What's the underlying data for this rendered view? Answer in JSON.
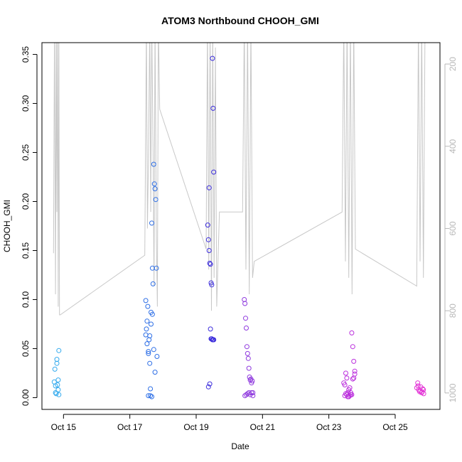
{
  "chart_data": {
    "type": "scatter",
    "title": "ATOM3 Northbound CHOOH_GMI",
    "xlabel": "Date",
    "ylabel": "CHOOH_GMI",
    "x_unit": "day of October",
    "xlim": [
      14.35,
      26.35
    ],
    "ylim": [
      -0.012,
      0.362
    ],
    "x_ticks": [
      {
        "value": 15,
        "label": "Oct 15"
      },
      {
        "value": 17,
        "label": "Oct 17"
      },
      {
        "value": 19,
        "label": "Oct 19"
      },
      {
        "value": 21,
        "label": "Oct 21"
      },
      {
        "value": 23,
        "label": "Oct 23"
      },
      {
        "value": 25,
        "label": "Oct 25"
      }
    ],
    "y_ticks": [
      {
        "value": 0.0,
        "label": "0.00"
      },
      {
        "value": 0.05,
        "label": "0.05"
      },
      {
        "value": 0.1,
        "label": "0.10"
      },
      {
        "value": 0.15,
        "label": "0.15"
      },
      {
        "value": 0.2,
        "label": "0.20"
      },
      {
        "value": 0.25,
        "label": "0.25"
      },
      {
        "value": 0.3,
        "label": "0.30"
      },
      {
        "value": 0.35,
        "label": "0.35"
      }
    ],
    "right_axis": {
      "inverted": true,
      "ylim": [
        1040,
        148
      ],
      "ticks": [
        {
          "value": 200,
          "label": "200"
        },
        {
          "value": 400,
          "label": "400"
        },
        {
          "value": 600,
          "label": "600"
        },
        {
          "value": 800,
          "label": "800"
        },
        {
          "value": 1000,
          "label": "1000"
        }
      ],
      "color": "#b8b8b8"
    },
    "pressure_trace": {
      "color": "#c8c8c8",
      "x": [
        14.7,
        14.73,
        14.76,
        14.78,
        14.8,
        14.82,
        14.84,
        14.86,
        14.88,
        14.9,
        17.45,
        17.5,
        17.53,
        17.56,
        17.6,
        17.63,
        17.66,
        17.7,
        17.73,
        17.76,
        17.8,
        17.83,
        17.86,
        17.9,
        19.3,
        19.34,
        19.38,
        19.42,
        19.46,
        19.5,
        19.54,
        19.58,
        19.62,
        19.7,
        20.4,
        20.45,
        20.5,
        20.55,
        20.6,
        20.65,
        20.7,
        20.75,
        23.4,
        23.45,
        23.5,
        23.55,
        23.6,
        23.65,
        23.7,
        23.75,
        23.8,
        25.65,
        25.7,
        25.75,
        25.8,
        25.85,
        25.9
      ],
      "y": [
        660,
        100,
        760,
        100,
        560,
        100,
        790,
        100,
        810,
        810,
        665,
        100,
        600,
        440,
        100,
        560,
        100,
        400,
        740,
        100,
        620,
        790,
        100,
        310,
        650,
        100,
        700,
        100,
        800,
        100,
        720,
        160,
        790,
        560,
        560,
        100,
        700,
        100,
        760,
        100,
        720,
        680,
        560,
        100,
        680,
        100,
        720,
        100,
        760,
        100,
        650,
        740,
        100,
        680,
        100,
        720,
        100
      ]
    },
    "series": [
      {
        "color": "#33aaee",
        "x": [
          14.72,
          14.74,
          14.76,
          14.78,
          14.8,
          14.82,
          14.84,
          14.86,
          14.76,
          14.8,
          14.84,
          14.86
        ],
        "y": [
          0.016,
          0.029,
          0.012,
          0.004,
          0.039,
          0.013,
          0.008,
          0.048,
          0.005,
          0.035,
          0.018,
          0.003
        ]
      },
      {
        "color": "#2e6fe6",
        "x": [
          17.48,
          17.5,
          17.52,
          17.54,
          17.56,
          17.58,
          17.6,
          17.62,
          17.64,
          17.66,
          17.68,
          17.7,
          17.72,
          17.74,
          17.76,
          17.78,
          17.8,
          17.82,
          17.48,
          17.52,
          17.56,
          17.6,
          17.64,
          17.68,
          17.72,
          17.76,
          17.56,
          17.62,
          17.66
        ],
        "y": [
          0.099,
          0.07,
          0.055,
          0.093,
          0.047,
          0.059,
          0.035,
          0.009,
          0.075,
          0.178,
          0.132,
          0.116,
          0.238,
          0.218,
          0.213,
          0.202,
          0.132,
          0.042,
          0.064,
          0.078,
          0.045,
          0.063,
          0.087,
          0.085,
          0.049,
          0.026,
          0.002,
          0.002,
          0.001
        ]
      },
      {
        "color": "#3c2ddc",
        "x": [
          19.35,
          19.37,
          19.39,
          19.41,
          19.43,
          19.45,
          19.47,
          19.49,
          19.51,
          19.53,
          19.39,
          19.43,
          19.47,
          19.51,
          19.37,
          19.41,
          19.45,
          19.49,
          19.53
        ],
        "y": [
          0.176,
          0.161,
          0.15,
          0.137,
          0.136,
          0.117,
          0.115,
          0.346,
          0.295,
          0.23,
          0.214,
          0.07,
          0.06,
          0.059,
          0.011,
          0.014,
          0.06,
          0.059,
          0.059
        ]
      },
      {
        "color": "#8f3ade",
        "x": [
          20.45,
          20.47,
          20.49,
          20.51,
          20.53,
          20.55,
          20.57,
          20.59,
          20.61,
          20.63,
          20.65,
          20.67,
          20.69,
          20.71,
          20.47,
          20.51,
          20.55,
          20.59,
          20.63,
          20.67,
          20.71
        ],
        "y": [
          0.1,
          0.096,
          0.081,
          0.071,
          0.052,
          0.045,
          0.04,
          0.03,
          0.021,
          0.018,
          0.019,
          0.015,
          0.017,
          0.005,
          0.002,
          0.003,
          0.004,
          0.005,
          0.003,
          0.005,
          0.002
        ]
      },
      {
        "color": "#bb30dd",
        "x": [
          23.45,
          23.48,
          23.51,
          23.54,
          23.57,
          23.6,
          23.63,
          23.66,
          23.69,
          23.72,
          23.75,
          23.78,
          23.48,
          23.54,
          23.6,
          23.66,
          23.72,
          23.78,
          23.51,
          23.57,
          23.63,
          23.69,
          23.75
        ],
        "y": [
          0.015,
          0.013,
          0.025,
          0.02,
          0.005,
          0.008,
          0.01,
          0.003,
          0.066,
          0.052,
          0.037,
          0.027,
          0.002,
          0.003,
          0.001,
          0.005,
          0.019,
          0.024,
          0.004,
          0.001,
          0.002,
          0.003,
          0.02
        ]
      },
      {
        "color": "#e335d6",
        "x": [
          25.65,
          25.68,
          25.71,
          25.74,
          25.77,
          25.8,
          25.83,
          25.86,
          25.69,
          25.75,
          25.81,
          25.85
        ],
        "y": [
          0.01,
          0.015,
          0.008,
          0.006,
          0.011,
          0.005,
          0.009,
          0.004,
          0.012,
          0.007,
          0.006,
          0.008
        ]
      }
    ],
    "grid": false,
    "legend": "none"
  }
}
